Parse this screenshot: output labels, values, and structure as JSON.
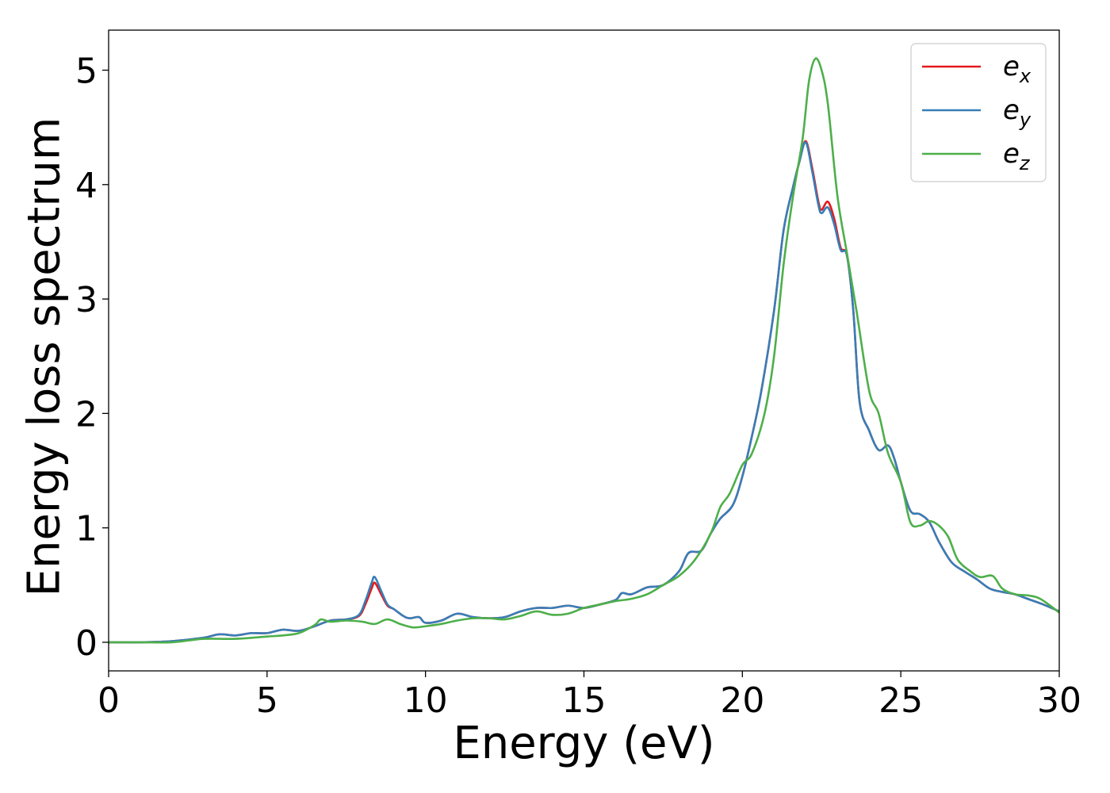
{
  "chart_data": {
    "type": "line",
    "title": "",
    "xlabel": "Energy (eV)",
    "ylabel": "Energy loss spectrum",
    "xlim": [
      0,
      30
    ],
    "ylim": [
      -0.25,
      5.35
    ],
    "xticks": [
      0,
      5,
      10,
      15,
      20,
      25,
      30
    ],
    "yticks": [
      0,
      1,
      2,
      3,
      4,
      5
    ],
    "grid": false,
    "legend_position": "top-right",
    "series": [
      {
        "name": "e_x",
        "label_base": "e",
        "label_sub": "x",
        "color": "#e41a1c",
        "x": [
          0,
          1,
          2,
          3,
          3.5,
          4,
          4.5,
          5,
          5.5,
          6,
          6.5,
          7,
          7.5,
          7.9,
          8.1,
          8.3,
          8.4,
          8.6,
          8.8,
          9,
          9.3,
          9.5,
          9.8,
          10,
          10.5,
          11,
          11.5,
          12,
          12.5,
          13,
          13.5,
          14,
          14.5,
          15,
          15.5,
          16,
          16.2,
          16.5,
          17,
          17.5,
          18,
          18.3,
          18.7,
          19,
          19.3,
          19.7,
          20,
          20.3,
          20.6,
          21,
          21.3,
          21.6,
          21.8,
          22,
          22.2,
          22.4,
          22.5,
          22.7,
          22.9,
          23.1,
          23.3,
          23.5,
          23.7,
          24,
          24.3,
          24.6,
          24.8,
          25,
          25.3,
          25.6,
          25.9,
          26.2,
          26.6,
          27,
          27.4,
          27.8,
          28.2,
          28.6,
          29,
          29.5,
          30
        ],
        "y": [
          0,
          0,
          0.01,
          0.04,
          0.07,
          0.06,
          0.08,
          0.08,
          0.11,
          0.1,
          0.14,
          0.19,
          0.2,
          0.23,
          0.33,
          0.47,
          0.52,
          0.42,
          0.32,
          0.29,
          0.23,
          0.21,
          0.22,
          0.17,
          0.19,
          0.25,
          0.22,
          0.21,
          0.22,
          0.27,
          0.3,
          0.3,
          0.32,
          0.3,
          0.33,
          0.37,
          0.43,
          0.42,
          0.48,
          0.5,
          0.62,
          0.78,
          0.8,
          0.95,
          1.08,
          1.2,
          1.45,
          1.8,
          2.2,
          2.9,
          3.6,
          3.98,
          4.2,
          4.38,
          4.15,
          3.85,
          3.78,
          3.85,
          3.7,
          3.45,
          3.38,
          2.9,
          2.1,
          1.85,
          1.68,
          1.72,
          1.6,
          1.4,
          1.15,
          1.12,
          1.05,
          0.88,
          0.7,
          0.62,
          0.55,
          0.47,
          0.44,
          0.42,
          0.38,
          0.33,
          0.27
        ]
      },
      {
        "name": "e_y",
        "label_base": "e",
        "label_sub": "y",
        "color": "#377eb8",
        "x": [
          0,
          1,
          2,
          3,
          3.5,
          4,
          4.5,
          5,
          5.5,
          6,
          6.5,
          7,
          7.5,
          7.9,
          8.1,
          8.3,
          8.4,
          8.6,
          8.8,
          9,
          9.3,
          9.5,
          9.8,
          10,
          10.5,
          11,
          11.5,
          12,
          12.5,
          13,
          13.5,
          14,
          14.5,
          15,
          15.5,
          16,
          16.2,
          16.5,
          17,
          17.5,
          18,
          18.3,
          18.7,
          19,
          19.3,
          19.7,
          20,
          20.3,
          20.6,
          21,
          21.3,
          21.6,
          21.8,
          22,
          22.2,
          22.4,
          22.5,
          22.7,
          22.9,
          23.1,
          23.3,
          23.5,
          23.7,
          24,
          24.3,
          24.6,
          24.8,
          25,
          25.3,
          25.6,
          25.9,
          26.2,
          26.6,
          27,
          27.4,
          27.8,
          28.2,
          28.6,
          29,
          29.5,
          30
        ],
        "y": [
          0,
          0,
          0.01,
          0.04,
          0.07,
          0.06,
          0.08,
          0.08,
          0.11,
          0.1,
          0.14,
          0.19,
          0.2,
          0.24,
          0.36,
          0.52,
          0.57,
          0.45,
          0.33,
          0.29,
          0.23,
          0.21,
          0.22,
          0.17,
          0.19,
          0.25,
          0.22,
          0.21,
          0.22,
          0.27,
          0.3,
          0.3,
          0.32,
          0.3,
          0.33,
          0.37,
          0.43,
          0.42,
          0.48,
          0.5,
          0.62,
          0.78,
          0.8,
          0.95,
          1.08,
          1.2,
          1.45,
          1.8,
          2.2,
          2.9,
          3.6,
          3.98,
          4.2,
          4.37,
          4.12,
          3.82,
          3.75,
          3.8,
          3.65,
          3.43,
          3.38,
          2.9,
          2.1,
          1.85,
          1.68,
          1.72,
          1.6,
          1.4,
          1.15,
          1.12,
          1.05,
          0.88,
          0.7,
          0.62,
          0.55,
          0.47,
          0.44,
          0.42,
          0.38,
          0.33,
          0.27
        ]
      },
      {
        "name": "e_z",
        "label_base": "e",
        "label_sub": "z",
        "color": "#4daf4a",
        "x": [
          0,
          1,
          2,
          3,
          4,
          5,
          5.5,
          6,
          6.5,
          6.7,
          7,
          7.5,
          8,
          8.4,
          8.8,
          9.2,
          9.6,
          10,
          10.5,
          11,
          11.5,
          12,
          12.5,
          13,
          13.5,
          14,
          14.5,
          15,
          15.5,
          16,
          16.5,
          17,
          17.5,
          18,
          18.5,
          19,
          19.3,
          19.6,
          20,
          20.3,
          20.7,
          21,
          21.3,
          21.6,
          21.9,
          22.1,
          22.3,
          22.5,
          22.7,
          23,
          23.3,
          23.6,
          24,
          24.3,
          24.6,
          25,
          25.3,
          25.6,
          25.9,
          26.2,
          26.5,
          26.8,
          27.2,
          27.5,
          27.9,
          28.2,
          28.6,
          29,
          29.4,
          30
        ],
        "y": [
          0,
          0,
          0,
          0.03,
          0.03,
          0.05,
          0.06,
          0.08,
          0.15,
          0.2,
          0.18,
          0.19,
          0.18,
          0.16,
          0.2,
          0.16,
          0.13,
          0.14,
          0.16,
          0.19,
          0.21,
          0.21,
          0.2,
          0.23,
          0.27,
          0.24,
          0.25,
          0.3,
          0.33,
          0.36,
          0.38,
          0.42,
          0.5,
          0.58,
          0.72,
          0.95,
          1.18,
          1.3,
          1.55,
          1.65,
          2.0,
          2.5,
          3.3,
          3.9,
          4.4,
          4.9,
          5.1,
          5.0,
          4.7,
          3.9,
          3.4,
          2.9,
          2.2,
          2.0,
          1.65,
          1.4,
          1.05,
          1.02,
          1.06,
          1.02,
          0.92,
          0.72,
          0.62,
          0.57,
          0.58,
          0.47,
          0.42,
          0.41,
          0.38,
          0.26
        ]
      }
    ]
  }
}
